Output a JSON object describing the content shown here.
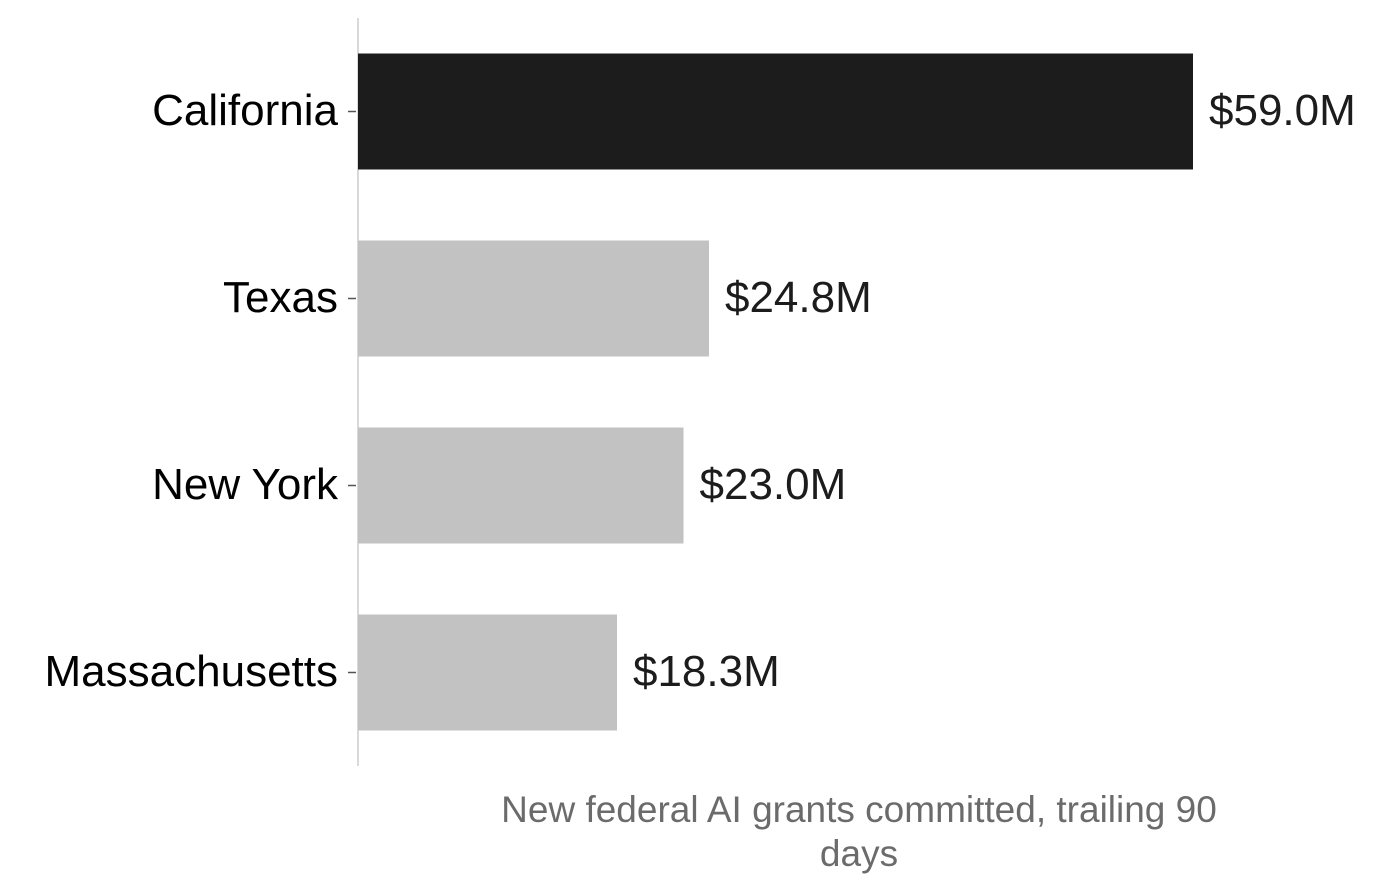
{
  "chart_data": {
    "type": "barh",
    "x_label": "New federal AI grants committed, trailing 90 days",
    "categories": [
      "California",
      "Texas",
      "New York",
      "Massachusetts"
    ],
    "values": [
      59.0,
      24.8,
      23.0,
      18.3
    ],
    "value_labels": [
      "$59.0M",
      "$24.8M",
      "$23.0M",
      "$18.3M"
    ],
    "colors": [
      "#1c1c1c",
      "#c2c2c2",
      "#c2c2c2",
      "#c2c2c2"
    ],
    "xlim": [
      0,
      70.8
    ]
  }
}
